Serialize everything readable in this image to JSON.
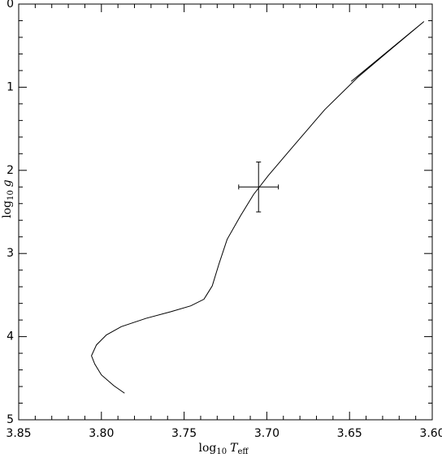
{
  "chart_data": {
    "type": "line",
    "xlabel": [
      "log",
      "10",
      "T",
      "eff"
    ],
    "ylabel": [
      "log",
      "10",
      "g"
    ],
    "xlim": [
      3.85,
      3.6
    ],
    "ylim": [
      5,
      0
    ],
    "xticks": [
      {
        "value": 3.85,
        "label": "3.85"
      },
      {
        "value": 3.8,
        "label": "3.80"
      },
      {
        "value": 3.75,
        "label": "3.75"
      },
      {
        "value": 3.7,
        "label": "3.70"
      },
      {
        "value": 3.65,
        "label": "3.65"
      },
      {
        "value": 3.6,
        "label": "3.60"
      }
    ],
    "xticks_minor": [
      3.84,
      3.83,
      3.82,
      3.81,
      3.79,
      3.78,
      3.77,
      3.76,
      3.74,
      3.73,
      3.72,
      3.71,
      3.69,
      3.68,
      3.67,
      3.66,
      3.64,
      3.63,
      3.62,
      3.61
    ],
    "yticks": [
      0,
      1,
      2,
      3,
      4,
      5
    ],
    "yticks_minor": [
      0.2,
      0.4,
      0.6,
      0.8,
      1.2,
      1.4,
      1.6,
      1.8,
      2.2,
      2.4,
      2.6,
      2.8,
      3.2,
      3.4,
      3.6,
      3.8,
      4.2,
      4.4,
      4.6,
      4.8
    ],
    "series": [
      {
        "color": "#000000",
        "x": [
          3.786,
          3.7925,
          3.8,
          3.804,
          3.806,
          3.803,
          3.797,
          3.788,
          3.773,
          3.758,
          3.746,
          3.738,
          3.733,
          3.729,
          3.724,
          3.716,
          3.708,
          3.699,
          3.684,
          3.665,
          3.645,
          3.626,
          3.605,
          3.627,
          3.649
        ],
        "values": [
          4.68,
          4.59,
          4.46,
          4.33,
          4.23,
          4.1,
          3.98,
          3.88,
          3.78,
          3.7,
          3.63,
          3.55,
          3.39,
          3.13,
          2.83,
          2.55,
          2.29,
          2.06,
          1.71,
          1.27,
          0.88,
          0.56,
          0.21,
          0.57,
          0.93
        ]
      }
    ],
    "errorbar": {
      "color": "#000000",
      "x": 3.705,
      "xerr": 0.012,
      "y": 2.2,
      "yerr": 0.3
    }
  }
}
